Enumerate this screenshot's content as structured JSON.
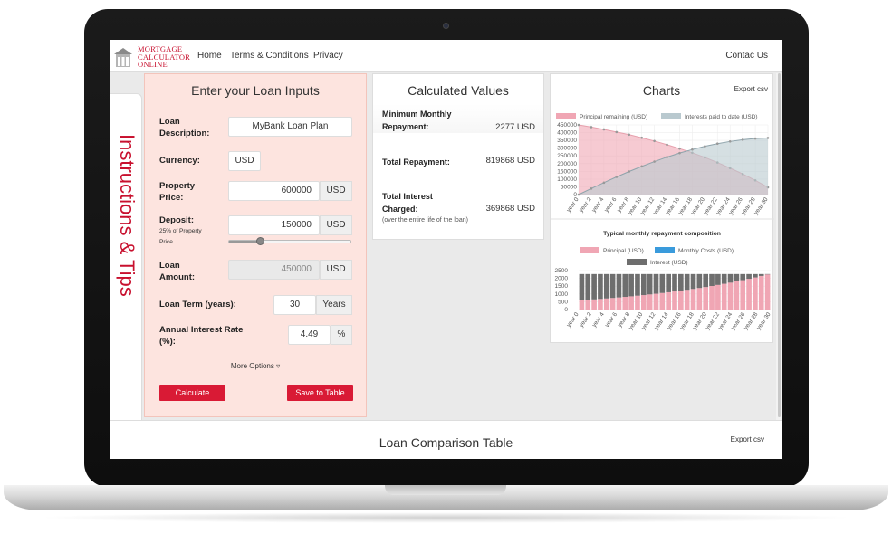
{
  "brand": {
    "logo_lines": [
      "MORTGAGE",
      "CALCULATOR",
      "ONLINE"
    ]
  },
  "nav": {
    "items": [
      "Home",
      "Terms & Conditions",
      "Privacy"
    ],
    "contact": "Contac Us"
  },
  "sidetab": {
    "label": "Instructions & Tips"
  },
  "inputs": {
    "title": "Enter your Loan Inputs",
    "loan_description": {
      "label_1": "Loan",
      "label_2": "Description:",
      "value": "MyBank Loan Plan"
    },
    "currency": {
      "label": "Currency:",
      "value": "USD"
    },
    "property_price": {
      "label_1": "Property",
      "label_2": "Price:",
      "value": "600000",
      "unit": "USD"
    },
    "deposit": {
      "label": "Deposit:",
      "sub_1": "25% of Property",
      "sub_2": "Price",
      "value": "150000",
      "unit": "USD",
      "slider_fraction": 0.25
    },
    "loan_amount": {
      "label_1": "Loan",
      "label_2": "Amount:",
      "value": "450000",
      "unit": "USD"
    },
    "loan_term": {
      "label": "Loan Term (years):",
      "value": "30",
      "unit": "Years"
    },
    "interest_rate": {
      "label_1": "Annual Interest Rate",
      "label_2": "(%):",
      "value": "4.49",
      "unit": "%"
    },
    "more_options": "More Options",
    "calculate": "Calculate",
    "save": "Save to Table"
  },
  "calculated": {
    "title": "Calculated Values",
    "min_monthly": {
      "label_1": "Minimum Monthly",
      "label_2": "Repayment:",
      "value": "2277 USD"
    },
    "total_repayment": {
      "label": "Total Repayment:",
      "value": "819868 USD"
    },
    "total_interest": {
      "label_1": "Total Interest",
      "label_2": "Charged:",
      "value": "369868 USD",
      "note": "(over the entire life of the loan)"
    }
  },
  "charts": {
    "title": "Charts",
    "export": "Export csv"
  },
  "comparison": {
    "title": "Loan Comparison Table",
    "export": "Export csv"
  },
  "colors": {
    "accent": "#d91a35",
    "principal": "#f0a6b4",
    "interest_area": "#b9c9cf",
    "interest_bar": "#6e6e6e",
    "monthly": "#3a9bdc"
  },
  "chart_data": [
    {
      "type": "area",
      "title": "",
      "legend": [
        "Principal remaining (USD)",
        "Interests paid to date (USD)"
      ],
      "x": [
        "year 0",
        "year 2",
        "year 4",
        "year 6",
        "year 8",
        "year 10",
        "year 12",
        "year 14",
        "year 16",
        "year 18",
        "year 20",
        "year 22",
        "year 24",
        "year 26",
        "year 28",
        "year 30"
      ],
      "y_ticks": [
        "450000",
        "400000",
        "350000",
        "300000",
        "250000",
        "200000",
        "150000",
        "100000",
        "50000",
        "0"
      ],
      "ylim": [
        0,
        450000
      ],
      "series": [
        {
          "name": "Principal remaining (USD)",
          "values": [
            450000,
            436000,
            421000,
            404000,
            387000,
            367000,
            346000,
            322000,
            297000,
            270000,
            240000,
            207000,
            171000,
            133000,
            92000,
            47000
          ]
        },
        {
          "name": "Interests paid to date (USD)",
          "values": [
            0,
            39000,
            77000,
            114000,
            149000,
            182000,
            213000,
            242000,
            268000,
            291000,
            312000,
            329000,
            343000,
            354000,
            362000,
            366000
          ]
        }
      ],
      "legend_position": "top"
    },
    {
      "type": "bar",
      "title": "Typical monthly repayment composition",
      "legend": [
        "Principal (USD)",
        "Monthly Costs (USD)",
        "Interest (USD)"
      ],
      "x": [
        "year 0",
        "year 2",
        "year 4",
        "year 6",
        "year 8",
        "year 10",
        "year 12",
        "year 14",
        "year 16",
        "year 18",
        "year 20",
        "year 22",
        "year 24",
        "year 26",
        "year 28",
        "year 30"
      ],
      "y_ticks": [
        "2500",
        "2000",
        "1500",
        "1000",
        "500",
        "0"
      ],
      "ylim": [
        0,
        2500
      ],
      "series": [
        {
          "name": "Principal (USD)",
          "values": [
            594,
            650,
            710,
            776,
            848,
            927,
            1013,
            1107,
            1209,
            1321,
            1444,
            1578,
            1724,
            1884,
            2059,
            2250
          ]
        },
        {
          "name": "Interest (USD)",
          "values": [
            1683,
            1627,
            1567,
            1501,
            1429,
            1350,
            1264,
            1170,
            1068,
            956,
            833,
            699,
            553,
            393,
            218,
            27
          ]
        }
      ],
      "legend_position": "top"
    }
  ]
}
